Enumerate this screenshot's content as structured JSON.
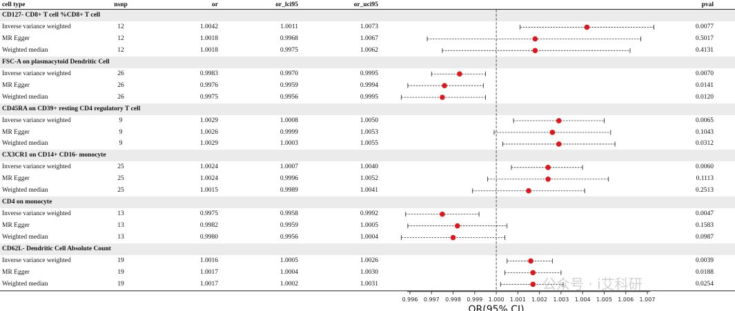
{
  "header": {
    "cell_type": "cell type",
    "nsnp": "nsnp",
    "or": "or",
    "or_lci95": "or_lci95",
    "or_uci95": "or_uci95",
    "pval": "pval"
  },
  "watermark": "公众号 · i艾科研",
  "chart_data": {
    "type": "forest",
    "xlabel": "OR(95% CI)",
    "xlim": [
      0.9955,
      1.0075
    ],
    "xticks": [
      "0.996",
      "0.997",
      "0.998",
      "0.999",
      "1.000",
      "1.001",
      "1.002",
      "1.003",
      "1.004",
      "1.005",
      "1.006",
      "1.007"
    ],
    "reference_line": 1.0,
    "point_color": "#e0161b",
    "groups": [
      {
        "title": "CD127- CD8+ T cell %CD8+ T cell",
        "rows": [
          {
            "method": "Inverse variance weighted",
            "nsnp": "12",
            "or": "1.0042",
            "lci": "1.0011",
            "uci": "1.0073",
            "pval": "0.0077",
            "or_v": 1.0042,
            "lci_v": 1.0011,
            "uci_v": 1.0073
          },
          {
            "method": "MR Egger",
            "nsnp": "12",
            "or": "1.0018",
            "lci": "0.9968",
            "uci": "1.0067",
            "pval": "0.5017",
            "or_v": 1.0018,
            "lci_v": 0.9968,
            "uci_v": 1.0067
          },
          {
            "method": "Weighted median",
            "nsnp": "12",
            "or": "1.0018",
            "lci": "0.9975",
            "uci": "1.0062",
            "pval": "0.4131",
            "or_v": 1.0018,
            "lci_v": 0.9975,
            "uci_v": 1.0062
          }
        ]
      },
      {
        "title": "FSC-A on plasmacytoid Dendritic Cell",
        "rows": [
          {
            "method": "Inverse variance weighted",
            "nsnp": "26",
            "or": "0.9983",
            "lci": "0.9970",
            "uci": "0.9995",
            "pval": "0.0070",
            "or_v": 0.9983,
            "lci_v": 0.997,
            "uci_v": 0.9995
          },
          {
            "method": "MR Egger",
            "nsnp": "26",
            "or": "0.9976",
            "lci": "0.9959",
            "uci": "0.9994",
            "pval": "0.0141",
            "or_v": 0.9976,
            "lci_v": 0.9959,
            "uci_v": 0.9994
          },
          {
            "method": "Weighted median",
            "nsnp": "26",
            "or": "0.9975",
            "lci": "0.9956",
            "uci": "0.9995",
            "pval": "0.0120",
            "or_v": 0.9975,
            "lci_v": 0.9956,
            "uci_v": 0.9995
          }
        ]
      },
      {
        "title": "CD45RA on CD39+ resting CD4 regulatory T cell",
        "rows": [
          {
            "method": "Inverse variance weighted",
            "nsnp": "9",
            "or": "1.0029",
            "lci": "1.0008",
            "uci": "1.0050",
            "pval": "0.0065",
            "or_v": 1.0029,
            "lci_v": 1.0008,
            "uci_v": 1.005
          },
          {
            "method": "MR Egger",
            "nsnp": "9",
            "or": "1.0026",
            "lci": "0.9999",
            "uci": "1.0053",
            "pval": "0.1043",
            "or_v": 1.0026,
            "lci_v": 0.9999,
            "uci_v": 1.0053
          },
          {
            "method": "Weighted median",
            "nsnp": "9",
            "or": "1.0029",
            "lci": "1.0003",
            "uci": "1.0055",
            "pval": "0.0312",
            "or_v": 1.0029,
            "lci_v": 1.0003,
            "uci_v": 1.0055
          }
        ]
      },
      {
        "title": "CX3CR1 on CD14+ CD16- monocyte",
        "rows": [
          {
            "method": "Inverse variance weighted",
            "nsnp": "25",
            "or": "1.0024",
            "lci": "1.0007",
            "uci": "1.0040",
            "pval": "0.0060",
            "or_v": 1.0024,
            "lci_v": 1.0007,
            "uci_v": 1.004
          },
          {
            "method": "MR Egger",
            "nsnp": "25",
            "or": "1.0024",
            "lci": "0.9996",
            "uci": "1.0052",
            "pval": "0.1113",
            "or_v": 1.0024,
            "lci_v": 0.9996,
            "uci_v": 1.0052
          },
          {
            "method": "Weighted median",
            "nsnp": "25",
            "or": "1.0015",
            "lci": "0.9989",
            "uci": "1.0041",
            "pval": "0.2513",
            "or_v": 1.0015,
            "lci_v": 0.9989,
            "uci_v": 1.0041
          }
        ]
      },
      {
        "title": "CD4 on monocyte",
        "rows": [
          {
            "method": "Inverse variance weighted",
            "nsnp": "13",
            "or": "0.9975",
            "lci": "0.9958",
            "uci": "0.9992",
            "pval": "0.0047",
            "or_v": 0.9975,
            "lci_v": 0.9958,
            "uci_v": 0.9992
          },
          {
            "method": "MR Egger",
            "nsnp": "13",
            "or": "0.9982",
            "lci": "0.9959",
            "uci": "1.0005",
            "pval": "0.1583",
            "or_v": 0.9982,
            "lci_v": 0.9959,
            "uci_v": 1.0005
          },
          {
            "method": "Weighted median",
            "nsnp": "13",
            "or": "0.9980",
            "lci": "0.9956",
            "uci": "1.0004",
            "pval": "0.0987",
            "or_v": 0.998,
            "lci_v": 0.9956,
            "uci_v": 1.0004
          }
        ]
      },
      {
        "title": "CD62L- Dendritic Cell Absolute Count",
        "rows": [
          {
            "method": "Inverse variance weighted",
            "nsnp": "19",
            "or": "1.0016",
            "lci": "1.0005",
            "uci": "1.0026",
            "pval": "0.0039",
            "or_v": 1.0016,
            "lci_v": 1.0005,
            "uci_v": 1.0026
          },
          {
            "method": "MR Egger",
            "nsnp": "19",
            "or": "1.0017",
            "lci": "1.0004",
            "uci": "1.0030",
            "pval": "0.0188",
            "or_v": 1.0017,
            "lci_v": 1.0004,
            "uci_v": 1.003
          },
          {
            "method": "Weighted median",
            "nsnp": "19",
            "or": "1.0017",
            "lci": "1.0002",
            "uci": "1.0031",
            "pval": "0.0254",
            "or_v": 1.0017,
            "lci_v": 1.0002,
            "uci_v": 1.0031
          }
        ]
      }
    ]
  }
}
